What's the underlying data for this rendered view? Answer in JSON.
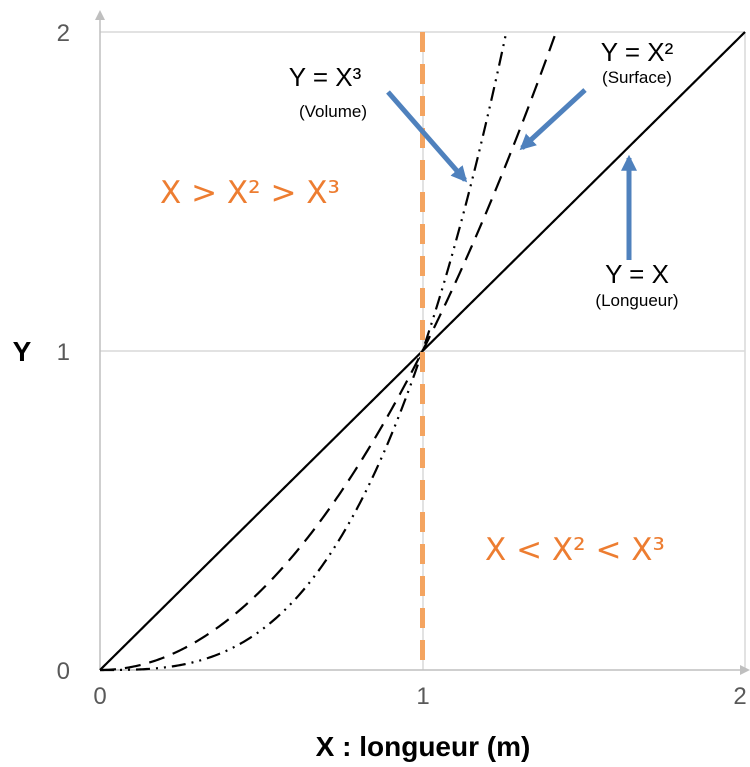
{
  "chart_data": {
    "type": "line",
    "title": "",
    "xlabel": "X : longueur (m)",
    "ylabel": "Y",
    "xlim": [
      0,
      2
    ],
    "ylim": [
      0,
      2
    ],
    "x_ticks": [
      "0",
      "1",
      "2"
    ],
    "y_ticks": [
      "0",
      "1",
      "2"
    ],
    "grid": true,
    "series": [
      {
        "function": "x",
        "style": "solid",
        "color": "#000000",
        "label_main": "Y = X",
        "label_sub": "(Longueur)"
      },
      {
        "function": "x^2",
        "style": "dashed",
        "color": "#000000",
        "label_main": "Y = X²",
        "label_sub": "(Surface)"
      },
      {
        "function": "x^3",
        "style": "dash-dot-dot",
        "color": "#000000",
        "label_main": "Y = X³",
        "label_sub": "(Volume)"
      }
    ],
    "reference_line": {
      "x": 1,
      "style": "dashed",
      "color": "#F4A460"
    },
    "regions": [
      {
        "text": "X > X² > X³"
      },
      {
        "text": "X < X² < X³"
      }
    ],
    "arrow_color": "#4F81BD"
  }
}
